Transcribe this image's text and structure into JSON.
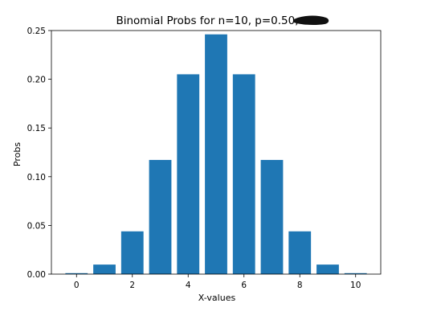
{
  "chart_data": {
    "type": "bar",
    "title": "Binomial Probs for n=10, p=0.50,",
    "xlabel": "X-values",
    "ylabel": "Probs",
    "categories": [
      0,
      1,
      2,
      3,
      4,
      5,
      6,
      7,
      8,
      9,
      10
    ],
    "values": [
      0.001,
      0.0098,
      0.0439,
      0.1172,
      0.2051,
      0.2461,
      0.2051,
      0.1172,
      0.0439,
      0.0098,
      0.001
    ],
    "xlim": [
      -0.9,
      10.9
    ],
    "ylim": [
      0,
      0.25
    ],
    "xticks": [
      "0",
      "2",
      "4",
      "6",
      "8",
      "10"
    ],
    "xtick_values": [
      0,
      2,
      4,
      6,
      8,
      10
    ],
    "yticks": [
      "0.00",
      "0.05",
      "0.10",
      "0.15",
      "0.20",
      "0.25"
    ],
    "ytick_values": [
      0,
      0.05,
      0.1,
      0.15,
      0.2,
      0.25
    ],
    "bar_width": 0.8,
    "bar_color": "#1f77b4",
    "grid": false,
    "legend": "none"
  }
}
